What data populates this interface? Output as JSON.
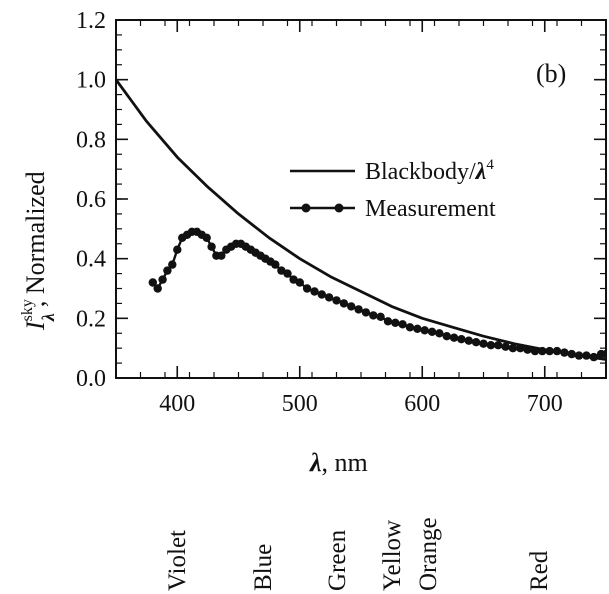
{
  "chart_data": {
    "type": "line",
    "panel_label": "(b)",
    "xlabel": {
      "symbol": "λ",
      "unit": ", nm"
    },
    "ylabel": {
      "symbol": "I",
      "superscript": "sky",
      "subscript": "λ",
      "text": ",  Normalized"
    },
    "xlim": [
      350,
      750
    ],
    "ylim": [
      0.0,
      1.2
    ],
    "x_ticks": [
      400,
      500,
      600,
      700
    ],
    "x_tick_labels": [
      "400",
      "500",
      "600",
      "700"
    ],
    "y_ticks": [
      0.0,
      0.2,
      0.4,
      0.6,
      0.8,
      1.0,
      1.2
    ],
    "y_tick_labels": [
      "0.0",
      "0.2",
      "0.4",
      "0.6",
      "0.8",
      "1.0",
      "1.2"
    ],
    "legend_position": "center-right",
    "series": [
      {
        "name": "Blackbody/λ⁴",
        "legend_text": "Blackbody/",
        "legend_symbol": "λ",
        "legend_sup": "4",
        "style": "line",
        "color": "#111111",
        "x": [
          350,
          375,
          400,
          425,
          450,
          475,
          500,
          525,
          550,
          575,
          600,
          625,
          650,
          675,
          700,
          725,
          750
        ],
        "y": [
          1.0,
          0.86,
          0.74,
          0.64,
          0.55,
          0.47,
          0.4,
          0.34,
          0.29,
          0.24,
          0.2,
          0.17,
          0.14,
          0.115,
          0.095,
          0.077,
          0.062
        ]
      },
      {
        "name": "Measurement",
        "legend_text": "Measurement",
        "style": "line-markers",
        "color": "#111111",
        "x": [
          380,
          384,
          388,
          392,
          396,
          400,
          404,
          408,
          412,
          416,
          420,
          424,
          428,
          432,
          436,
          440,
          444,
          448,
          452,
          456,
          460,
          464,
          468,
          472,
          476,
          480,
          485,
          490,
          495,
          500,
          506,
          512,
          518,
          524,
          530,
          536,
          542,
          548,
          554,
          560,
          566,
          572,
          578,
          584,
          590,
          596,
          602,
          608,
          614,
          620,
          626,
          632,
          638,
          644,
          650,
          656,
          662,
          668,
          674,
          680,
          686,
          692,
          698,
          704,
          710,
          716,
          722,
          728,
          734,
          740,
          746,
          750
        ],
        "y": [
          0.32,
          0.3,
          0.33,
          0.36,
          0.38,
          0.43,
          0.47,
          0.48,
          0.49,
          0.49,
          0.48,
          0.47,
          0.44,
          0.41,
          0.41,
          0.43,
          0.44,
          0.45,
          0.45,
          0.44,
          0.43,
          0.42,
          0.41,
          0.4,
          0.39,
          0.38,
          0.36,
          0.35,
          0.33,
          0.32,
          0.3,
          0.29,
          0.28,
          0.27,
          0.26,
          0.25,
          0.24,
          0.23,
          0.22,
          0.21,
          0.205,
          0.19,
          0.185,
          0.18,
          0.17,
          0.165,
          0.16,
          0.155,
          0.15,
          0.14,
          0.135,
          0.13,
          0.125,
          0.12,
          0.115,
          0.11,
          0.11,
          0.105,
          0.1,
          0.1,
          0.095,
          0.09,
          0.09,
          0.09,
          0.09,
          0.085,
          0.08,
          0.075,
          0.075,
          0.07,
          0.08,
          0.08
        ]
      }
    ]
  },
  "color_bands": [
    {
      "name": "Violet",
      "wavelength": 400
    },
    {
      "name": "Blue",
      "wavelength": 470
    },
    {
      "name": "Green",
      "wavelength": 530
    },
    {
      "name": "Yellow",
      "wavelength": 575
    },
    {
      "name": "Orange",
      "wavelength": 605
    },
    {
      "name": "Red",
      "wavelength": 695
    }
  ]
}
